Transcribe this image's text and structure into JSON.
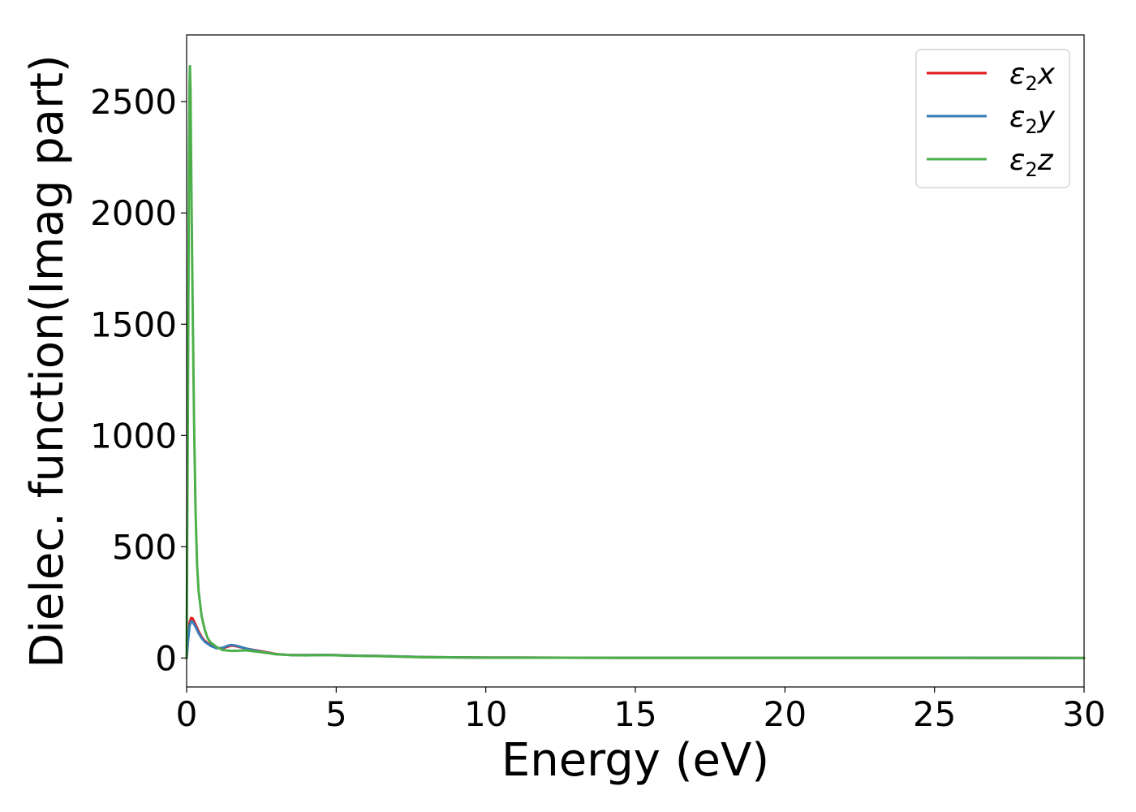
{
  "chart_data": {
    "type": "line",
    "xlabel": "Energy (eV)",
    "ylabel": "Dielec. function(Imag part)",
    "xlim": [
      0,
      30
    ],
    "ylim": [
      -130,
      2800
    ],
    "xticks": [
      0,
      5,
      10,
      15,
      20,
      25,
      30
    ],
    "yticks": [
      0,
      500,
      1000,
      1500,
      2000,
      2500
    ],
    "grid": false,
    "legend_position": "top-right",
    "series": [
      {
        "name": "ε2x",
        "legend_main": "ε",
        "legend_sub": "2",
        "legend_suffix": "x",
        "color": "#e41a1c",
        "points": [
          [
            0,
            0
          ],
          [
            0.05,
            90
          ],
          [
            0.1,
            160
          ],
          [
            0.15,
            180
          ],
          [
            0.2,
            178
          ],
          [
            0.3,
            150
          ],
          [
            0.4,
            120
          ],
          [
            0.5,
            95
          ],
          [
            0.6,
            78
          ],
          [
            0.8,
            58
          ],
          [
            1.0,
            45
          ],
          [
            1.2,
            44
          ],
          [
            1.4,
            52
          ],
          [
            1.5,
            56
          ],
          [
            1.7,
            52
          ],
          [
            2.0,
            42
          ],
          [
            2.5,
            30
          ],
          [
            3.0,
            18
          ],
          [
            3.5,
            13
          ],
          [
            4.0,
            13
          ],
          [
            4.7,
            14
          ],
          [
            5.5,
            11
          ],
          [
            6.5,
            9
          ],
          [
            8.0,
            4
          ],
          [
            10,
            2
          ],
          [
            15,
            1
          ],
          [
            20,
            1
          ],
          [
            25,
            1
          ],
          [
            30,
            0
          ]
        ]
      },
      {
        "name": "ε2y",
        "legend_main": "ε",
        "legend_sub": "2",
        "legend_suffix": "y",
        "color": "#377eb8",
        "points": [
          [
            0,
            0
          ],
          [
            0.05,
            80
          ],
          [
            0.1,
            145
          ],
          [
            0.15,
            165
          ],
          [
            0.2,
            163
          ],
          [
            0.3,
            140
          ],
          [
            0.4,
            112
          ],
          [
            0.5,
            90
          ],
          [
            0.6,
            74
          ],
          [
            0.8,
            55
          ],
          [
            1.0,
            44
          ],
          [
            1.2,
            46
          ],
          [
            1.4,
            56
          ],
          [
            1.5,
            59
          ],
          [
            1.7,
            54
          ],
          [
            2.0,
            42
          ],
          [
            2.5,
            28
          ],
          [
            3.0,
            17
          ],
          [
            3.5,
            13
          ],
          [
            4.0,
            13
          ],
          [
            4.7,
            14
          ],
          [
            5.5,
            11
          ],
          [
            6.5,
            9
          ],
          [
            8.0,
            4
          ],
          [
            10,
            2
          ],
          [
            15,
            1
          ],
          [
            20,
            1
          ],
          [
            25,
            1
          ],
          [
            30,
            0
          ]
        ]
      },
      {
        "name": "ε2z",
        "legend_main": "ε",
        "legend_sub": "2",
        "legend_suffix": "z",
        "color": "#4daf4a",
        "points": [
          [
            0,
            0
          ],
          [
            0.05,
            1300
          ],
          [
            0.08,
            2250
          ],
          [
            0.1,
            2600
          ],
          [
            0.11,
            2660
          ],
          [
            0.13,
            2550
          ],
          [
            0.16,
            2100
          ],
          [
            0.2,
            1600
          ],
          [
            0.25,
            1050
          ],
          [
            0.3,
            650
          ],
          [
            0.35,
            420
          ],
          [
            0.4,
            300
          ],
          [
            0.5,
            190
          ],
          [
            0.6,
            130
          ],
          [
            0.7,
            90
          ],
          [
            0.8,
            70
          ],
          [
            1.0,
            50
          ],
          [
            1.2,
            36
          ],
          [
            1.5,
            32
          ],
          [
            2.0,
            34
          ],
          [
            2.5,
            26
          ],
          [
            3.0,
            17
          ],
          [
            3.5,
            13
          ],
          [
            4.0,
            12
          ],
          [
            4.7,
            13
          ],
          [
            5.5,
            10
          ],
          [
            6.5,
            8
          ],
          [
            8.0,
            3
          ],
          [
            10,
            2
          ],
          [
            15,
            1
          ],
          [
            20,
            1
          ],
          [
            25,
            1
          ],
          [
            30,
            0
          ]
        ]
      }
    ]
  }
}
